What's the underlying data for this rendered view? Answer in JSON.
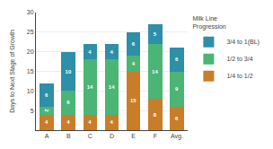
{
  "chart_data": {
    "type": "bar",
    "stacked": true,
    "categories": [
      "A",
      "B",
      "C",
      "D",
      "E",
      "F",
      "Avg."
    ],
    "series": [
      {
        "name": "1/4 to 1/2",
        "color": "#c97d28",
        "values": [
          4,
          4,
          4,
          4,
          15,
          8,
          6
        ]
      },
      {
        "name": "1/2 to 3/4",
        "color": "#4ab575",
        "values": [
          2,
          6,
          14,
          14,
          4,
          14,
          9
        ]
      },
      {
        "name": "3/4 to 1(BL)",
        "color": "#2e8fa8",
        "values": [
          6,
          10,
          4,
          4,
          6,
          5,
          6
        ]
      }
    ],
    "ylabel": "Days to Next Stage of Growth",
    "legend_title": "Milk Line\nProgression",
    "legend": "right",
    "ylim": [
      0,
      30
    ],
    "yticks": [
      5,
      10,
      15,
      20,
      25,
      30
    ],
    "grid": true,
    "data_labels": true
  }
}
